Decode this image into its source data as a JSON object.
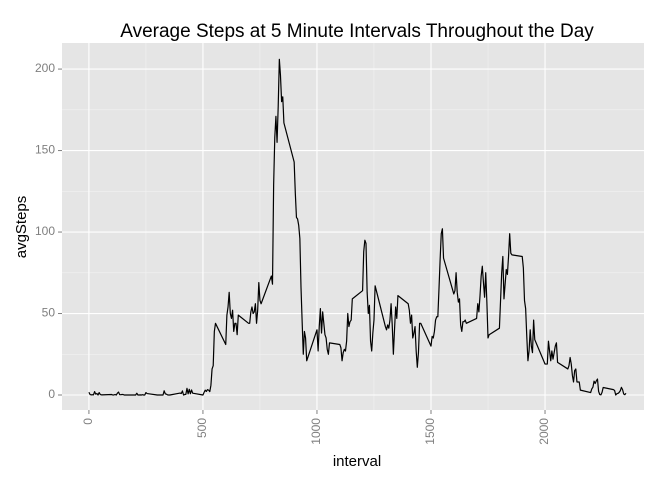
{
  "chart_data": {
    "type": "line",
    "title": "Average Steps at 5 Minute Intervals Throughout the Day",
    "x_label": "interval",
    "y_label": "avgSteps",
    "x": [
      0,
      5,
      10,
      15,
      20,
      25,
      30,
      35,
      40,
      45,
      50,
      55,
      100,
      105,
      110,
      115,
      120,
      125,
      130,
      135,
      140,
      145,
      150,
      155,
      200,
      205,
      210,
      215,
      220,
      225,
      230,
      235,
      240,
      245,
      250,
      255,
      300,
      305,
      310,
      315,
      320,
      325,
      330,
      335,
      340,
      345,
      350,
      355,
      400,
      405,
      410,
      415,
      420,
      425,
      430,
      435,
      440,
      445,
      450,
      455,
      500,
      505,
      510,
      515,
      520,
      525,
      530,
      535,
      540,
      545,
      550,
      555,
      600,
      605,
      610,
      615,
      620,
      625,
      630,
      635,
      640,
      645,
      650,
      655,
      700,
      705,
      710,
      715,
      720,
      725,
      730,
      735,
      740,
      745,
      750,
      755,
      800,
      805,
      810,
      815,
      820,
      825,
      830,
      835,
      840,
      845,
      850,
      855,
      900,
      905,
      910,
      915,
      920,
      925,
      930,
      935,
      940,
      945,
      950,
      955,
      1000,
      1005,
      1010,
      1015,
      1020,
      1025,
      1030,
      1035,
      1040,
      1045,
      1050,
      1055,
      1100,
      1105,
      1110,
      1115,
      1120,
      1125,
      1130,
      1135,
      1140,
      1145,
      1150,
      1155,
      1200,
      1205,
      1210,
      1215,
      1220,
      1225,
      1230,
      1235,
      1240,
      1245,
      1250,
      1255,
      1300,
      1305,
      1310,
      1315,
      1320,
      1325,
      1330,
      1335,
      1340,
      1345,
      1350,
      1355,
      1400,
      1405,
      1410,
      1415,
      1420,
      1425,
      1430,
      1435,
      1440,
      1445,
      1450,
      1455,
      1500,
      1505,
      1510,
      1515,
      1520,
      1525,
      1530,
      1535,
      1540,
      1545,
      1550,
      1555,
      1600,
      1605,
      1610,
      1615,
      1620,
      1625,
      1630,
      1635,
      1640,
      1645,
      1650,
      1655,
      1700,
      1705,
      1710,
      1715,
      1720,
      1725,
      1730,
      1735,
      1740,
      1745,
      1750,
      1755,
      1800,
      1805,
      1810,
      1815,
      1820,
      1825,
      1830,
      1835,
      1840,
      1845,
      1850,
      1855,
      1900,
      1905,
      1910,
      1915,
      1920,
      1925,
      1930,
      1935,
      1940,
      1945,
      1950,
      1955,
      2000,
      2005,
      2010,
      2015,
      2020,
      2025,
      2030,
      2035,
      2040,
      2045,
      2050,
      2055,
      2100,
      2105,
      2110,
      2115,
      2120,
      2125,
      2130,
      2135,
      2140,
      2145,
      2150,
      2155,
      2200,
      2205,
      2210,
      2215,
      2220,
      2225,
      2230,
      2235,
      2240,
      2245,
      2250,
      2255,
      2300,
      2305,
      2310,
      2315,
      2320,
      2325,
      2330,
      2335,
      2340,
      2345,
      2350,
      2355
    ],
    "series": [
      {
        "color": "#000000",
        "values": [
          1.7,
          0.3,
          0.1,
          0.2,
          0.1,
          2.1,
          0.5,
          0.9,
          0,
          1.5,
          0.3,
          0.1,
          0.3,
          0,
          0.1,
          0.3,
          0,
          1.1,
          1.8,
          0.2,
          0.2,
          0.3,
          0.3,
          0,
          0,
          0,
          1.1,
          0,
          0,
          0.1,
          0,
          0.2,
          0,
          0,
          1.5,
          0.9,
          0,
          0,
          0,
          0,
          0,
          0,
          2.6,
          0.7,
          0.5,
          0.1,
          0,
          0,
          1.2,
          0.9,
          2.5,
          0,
          0.3,
          0.4,
          4.1,
          0.7,
          3.5,
          0.8,
          3.1,
          1.1,
          0,
          1.6,
          3,
          2.2,
          3.3,
          3,
          2.1,
          6,
          16,
          18,
          39,
          44,
          31,
          49,
          54,
          63,
          50,
          47,
          52,
          39,
          44,
          44,
          37,
          49,
          44,
          44,
          51,
          54,
          50,
          51,
          56,
          44,
          52,
          69,
          58,
          56,
          73,
          68,
          129,
          158,
          171,
          155,
          177,
          206,
          196,
          180,
          183,
          167,
          143,
          124,
          109,
          108,
          104,
          96,
          66,
          45,
          25,
          39,
          35,
          21,
          40,
          27,
          42,
          53,
          38,
          51,
          44,
          37,
          35,
          28,
          25,
          32,
          31,
          29,
          21,
          26,
          28,
          27,
          33,
          50,
          42,
          45,
          46,
          59,
          64,
          88,
          95,
          93,
          63,
          50,
          55,
          33,
          27,
          38,
          46,
          67,
          42,
          40,
          43,
          41,
          46,
          56,
          43,
          25,
          40,
          54,
          47,
          61,
          56,
          52,
          44,
          49,
          35,
          38,
          42,
          27,
          17,
          26,
          44,
          44,
          30,
          36,
          35,
          39,
          46,
          48,
          48,
          65,
          83,
          99,
          102,
          84,
          62,
          64,
          75,
          63,
          57,
          59,
          43,
          39,
          45,
          45,
          46,
          44,
          47,
          56,
          51,
          61,
          73,
          79,
          69,
          60,
          75,
          57,
          35,
          37,
          41,
          58,
          75,
          85,
          59,
          68,
          77,
          74,
          85,
          99,
          87,
          86,
          85,
          78,
          58,
          53,
          36,
          21,
          27,
          40,
          30,
          26,
          46,
          34,
          19,
          19,
          19,
          33,
          27,
          21,
          27,
          22,
          26,
          30,
          32,
          20,
          16,
          18,
          23,
          19,
          12,
          8,
          15,
          16,
          8,
          8,
          8,
          3,
          1.5,
          3.7,
          4.8,
          8.5,
          7.1,
          8.7,
          9.8,
          2.2,
          0.3,
          0.1,
          1.6,
          4.6,
          3.3,
          2.8,
          0,
          0.8,
          1,
          1.6,
          2.6,
          4.7,
          3.3,
          0.6,
          0.2,
          1.1
        ]
      }
    ],
    "xlim": [
      -118,
      2434
    ],
    "ylim": [
      -9.2,
      216
    ],
    "xticks": [
      0,
      500,
      1000,
      1500,
      2000
    ],
    "yticks": [
      0,
      50,
      100,
      150,
      200
    ],
    "grid": true,
    "panel_color": "#e5e5e5"
  }
}
